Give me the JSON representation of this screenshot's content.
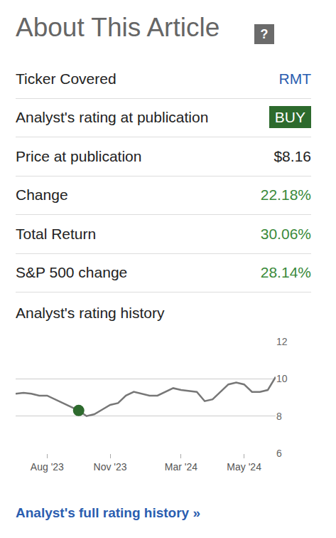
{
  "title": "About This Article",
  "help_icon": "?",
  "rows": [
    {
      "label": "Ticker Covered",
      "value": "RMT",
      "style": "link"
    },
    {
      "label": "Analyst's rating at publication",
      "value": "BUY",
      "style": "badge"
    },
    {
      "label": "Price at publication",
      "value": "$8.16"
    },
    {
      "label": "Change",
      "value": "22.18%",
      "style": "positive"
    },
    {
      "label": "Total Return",
      "value": "30.06%",
      "style": "positive"
    },
    {
      "label": "S&P 500 change",
      "value": "28.14%",
      "style": "positive"
    }
  ],
  "chart_label": "Analyst's rating history",
  "chart_data": {
    "type": "line",
    "categories": [
      null,
      null,
      null,
      null,
      "Aug '23",
      null,
      null,
      null,
      null,
      null,
      null,
      null,
      "Nov '23",
      null,
      null,
      null,
      null,
      null,
      null,
      null,
      null,
      "Mar '24",
      null,
      null,
      null,
      null,
      null,
      null,
      null,
      "May '24",
      null,
      null,
      null,
      null
    ],
    "series": [
      {
        "color": "#777777",
        "line_style": "solid",
        "values": [
          9.2,
          9.25,
          9.2,
          9.1,
          9.1,
          8.9,
          8.7,
          8.5,
          8.3,
          8.0,
          8.1,
          8.35,
          8.6,
          8.7,
          9.1,
          9.3,
          9.2,
          9.1,
          9.1,
          9.3,
          9.5,
          9.4,
          9.35,
          9.3,
          8.8,
          8.9,
          9.3,
          9.7,
          9.8,
          9.7,
          9.3,
          9.3,
          9.4,
          10.1
        ]
      },
      {
        "type": "scatter",
        "marker": "circle",
        "color": "#2d6a2d",
        "values": [
          null,
          null,
          null,
          null,
          null,
          null,
          null,
          null,
          8.3,
          null,
          null,
          null,
          null,
          null,
          null,
          null,
          null,
          null,
          null,
          null,
          null,
          null,
          null,
          null,
          null,
          null,
          null,
          null,
          null,
          null,
          null,
          null,
          null,
          null
        ]
      }
    ],
    "ylim": [
      6,
      12
    ],
    "yticks": [
      6,
      8,
      10,
      12
    ],
    "grid": true
  },
  "footer_link": "Analyst's full rating history »"
}
